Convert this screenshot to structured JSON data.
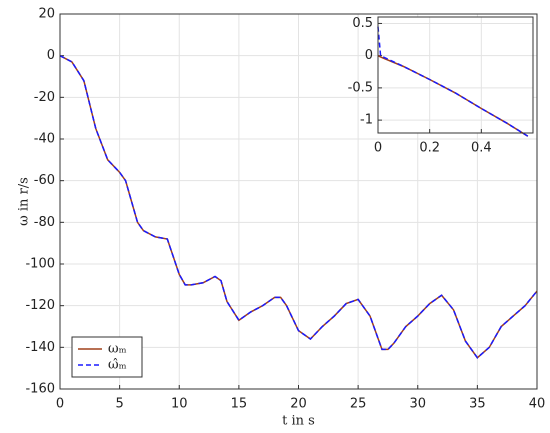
{
  "chart_data": [
    {
      "type": "line",
      "xlabel": "t in s",
      "ylabel": "ω in r/s",
      "x": [
        0,
        1,
        2,
        3,
        4,
        5,
        5.5,
        6,
        6.5,
        7,
        8,
        9,
        10,
        10.5,
        11,
        12,
        13,
        13.5,
        14,
        15,
        16,
        17,
        18,
        18.5,
        19,
        20,
        21,
        22,
        23,
        24,
        25,
        26,
        27,
        27.5,
        28,
        29,
        30,
        31,
        32,
        33,
        34,
        35,
        36,
        37,
        38,
        39,
        40
      ],
      "series": [
        {
          "name": "ωₘ",
          "color": "#a0401a",
          "dash": false,
          "values": [
            0,
            -3,
            -12,
            -35,
            -50,
            -56,
            -60,
            -70,
            -80,
            -84,
            -87,
            -88,
            -105,
            -110,
            -110,
            -109,
            -106,
            -108,
            -118,
            -127,
            -123,
            -120,
            -116,
            -116,
            -120,
            -132,
            -136,
            -130,
            -125,
            -119,
            -117,
            -125,
            -141,
            -141,
            -138,
            -130,
            -125,
            -119,
            -115,
            -122,
            -137,
            -145,
            -140,
            -130,
            -125,
            -120,
            -113
          ]
        },
        {
          "name": "ω̂ₘ",
          "color": "#1a1aff",
          "dash": true,
          "values": [
            0,
            -3,
            -12,
            -35,
            -50,
            -56,
            -60,
            -70,
            -80,
            -84,
            -87,
            -88,
            -105,
            -110,
            -110,
            -109,
            -106,
            -108,
            -118,
            -127,
            -123,
            -120,
            -116,
            -116,
            -120,
            -132,
            -136,
            -130,
            -125,
            -119,
            -117,
            -125,
            -141,
            -141,
            -138,
            -130,
            -125,
            -119,
            -115,
            -122,
            -137,
            -145,
            -140,
            -130,
            -125,
            -120,
            -113
          ]
        }
      ],
      "xlim": [
        0,
        40
      ],
      "ylim": [
        -160,
        20
      ],
      "xticks": [
        0,
        5,
        10,
        15,
        20,
        25,
        30,
        35,
        40
      ],
      "yticks": [
        -160,
        -140,
        -120,
        -100,
        -80,
        -60,
        -40,
        -20,
        0,
        20
      ],
      "grid": true,
      "legend": "lower left"
    },
    {
      "type": "line",
      "x": [
        0,
        0.01,
        0.1,
        0.2,
        0.3,
        0.4,
        0.5,
        0.58
      ],
      "series": [
        {
          "color": "#a0401a",
          "dash": false,
          "values": [
            0,
            -0.02,
            -0.17,
            -0.37,
            -0.58,
            -0.82,
            -1.05,
            -1.25
          ]
        },
        {
          "color": "#1a1aff",
          "dash": true,
          "values": [
            0.45,
            0,
            -0.17,
            -0.37,
            -0.58,
            -0.82,
            -1.05,
            -1.25
          ]
        }
      ],
      "xlim": [
        0,
        0.6
      ],
      "ylim": [
        -1.2,
        0.6
      ],
      "xticks": [
        0,
        0.2,
        0.4
      ],
      "yticks": [
        -1,
        -0.5,
        0,
        0.5
      ],
      "grid": true
    }
  ]
}
